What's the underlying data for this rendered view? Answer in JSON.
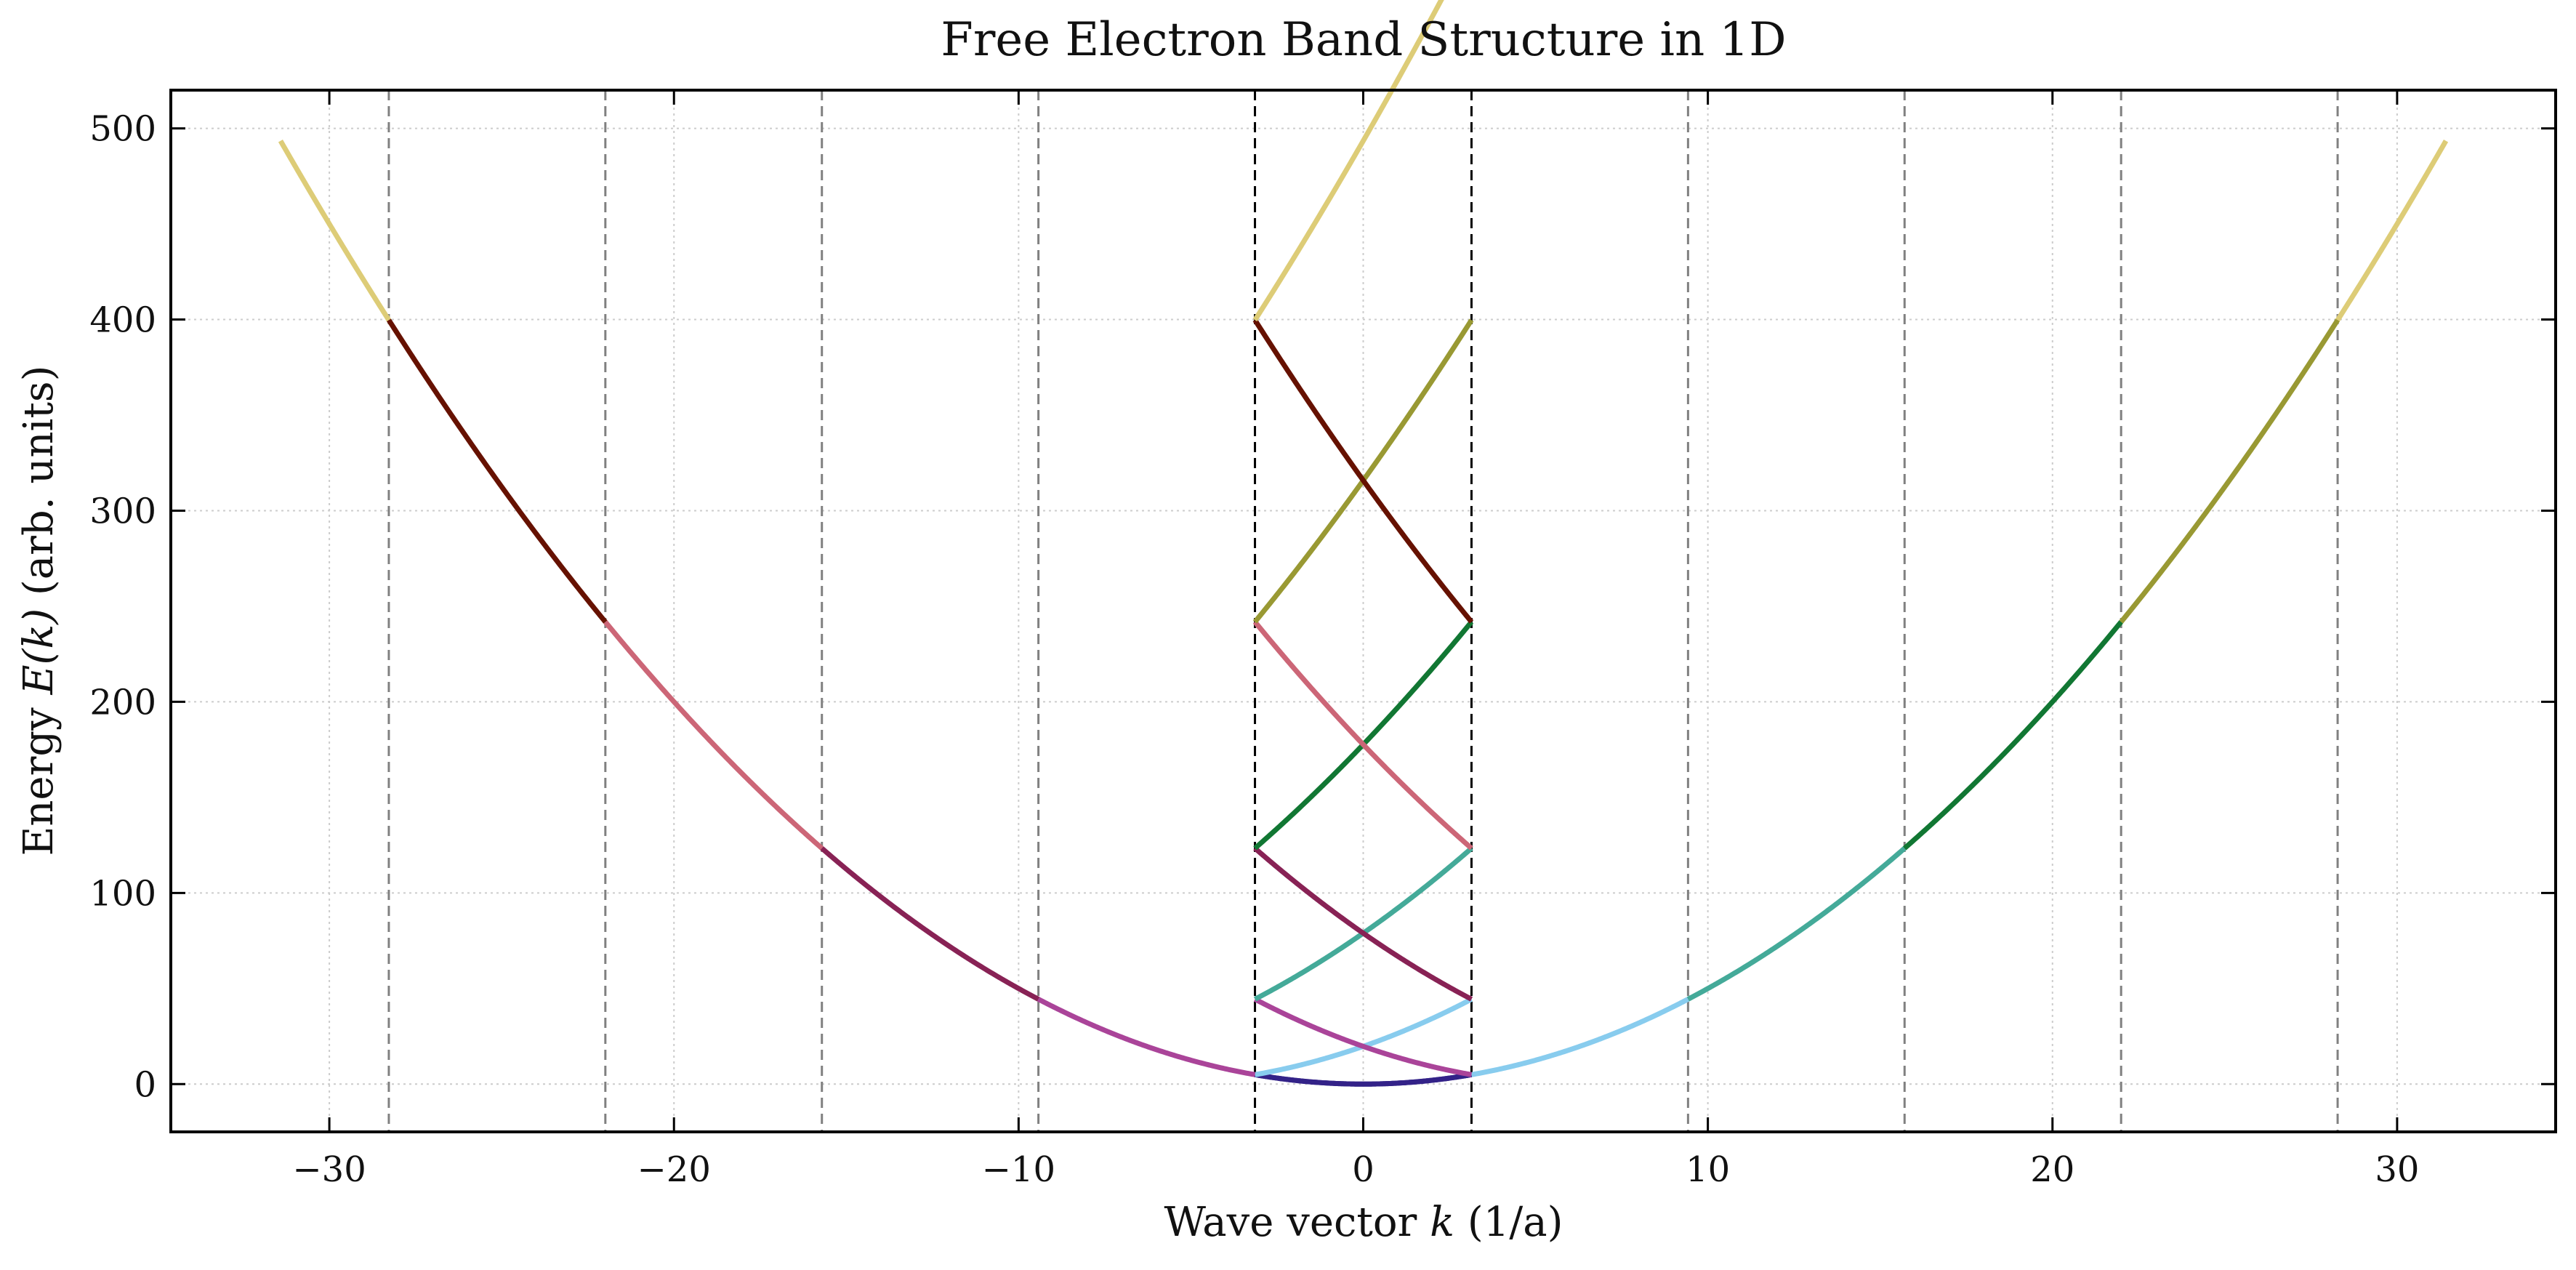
{
  "chart_data": {
    "type": "line",
    "title": "Free Electron Band Structure in 1D",
    "xlabel_prefix": "Wave vector ",
    "xlabel_var": "k",
    "xlabel_suffix": " (1/a)",
    "ylabel_prefix": "Energy ",
    "ylabel_var": "E(k)",
    "ylabel_suffix": " (arb. units)",
    "xlim": [
      -34.6,
      34.6
    ],
    "ylim": [
      -25,
      520
    ],
    "x_ticks": [
      -30,
      -20,
      -10,
      0,
      10,
      20,
      30
    ],
    "x_tick_labels": [
      "−30",
      "−20",
      "−10",
      "0",
      "10",
      "20",
      "30"
    ],
    "y_ticks": [
      0,
      100,
      200,
      300,
      400,
      500
    ],
    "y_tick_labels": [
      "0",
      "100",
      "200",
      "300",
      "400",
      "500"
    ],
    "grid": true,
    "energy_scale": 0.5,
    "brillouin_zone_half_width": 3.1416,
    "first_zone_boundaries": [
      -3.1416,
      3.1416
    ],
    "higher_zone_boundaries": [
      -28.274,
      -21.991,
      -15.708,
      -9.425,
      9.425,
      15.708,
      21.991,
      28.274
    ],
    "bands": [
      {
        "index": 0,
        "color": "#332288",
        "k_ranges": [
          [
            -3.1416,
            3.1416
          ]
        ],
        "reduced_range": [
          -3.1416,
          3.1416
        ]
      },
      {
        "index": 1,
        "color": "#88ccee",
        "k_ranges": [
          [
            3.1416,
            9.425
          ]
        ],
        "reduced_range": [
          -3.1416,
          3.1416
        ]
      },
      {
        "index": 2,
        "color": "#aa4499",
        "k_ranges": [
          [
            -9.425,
            -3.1416
          ]
        ],
        "reduced_range": [
          -3.1416,
          3.1416
        ]
      },
      {
        "index": 3,
        "color": "#44aa99",
        "k_ranges": [
          [
            9.425,
            15.708
          ]
        ],
        "reduced_range": [
          -3.1416,
          3.1416
        ]
      },
      {
        "index": 4,
        "color": "#882255",
        "k_ranges": [
          [
            -15.708,
            -9.425
          ]
        ],
        "reduced_range": [
          -3.1416,
          3.1416
        ]
      },
      {
        "index": 5,
        "color": "#117733",
        "k_ranges": [
          [
            15.708,
            21.991
          ]
        ],
        "reduced_range": [
          -3.1416,
          3.1416
        ]
      },
      {
        "index": 6,
        "color": "#cc6677",
        "k_ranges": [
          [
            -21.991,
            -15.708
          ]
        ],
        "reduced_range": [
          -3.1416,
          3.1416
        ]
      },
      {
        "index": 7,
        "color": "#999933",
        "k_ranges": [
          [
            21.991,
            28.274
          ]
        ],
        "reduced_range": [
          -3.1416,
          3.1416
        ]
      },
      {
        "index": 8,
        "color": "#661100",
        "k_ranges": [
          [
            -28.274,
            -21.991
          ]
        ],
        "reduced_range": [
          -3.1416,
          3.1416
        ]
      },
      {
        "index": 9,
        "color": "#ddcc77",
        "k_ranges": [
          [
            -31.416,
            -28.274
          ],
          [
            28.274,
            31.416
          ]
        ],
        "reduced_range": [
          -3.1416,
          3.1416
        ]
      }
    ],
    "colors": {
      "axis": "#000000",
      "grid": "#cccccc",
      "first_zone_line": "#000000",
      "zone_line": "#808080"
    }
  }
}
